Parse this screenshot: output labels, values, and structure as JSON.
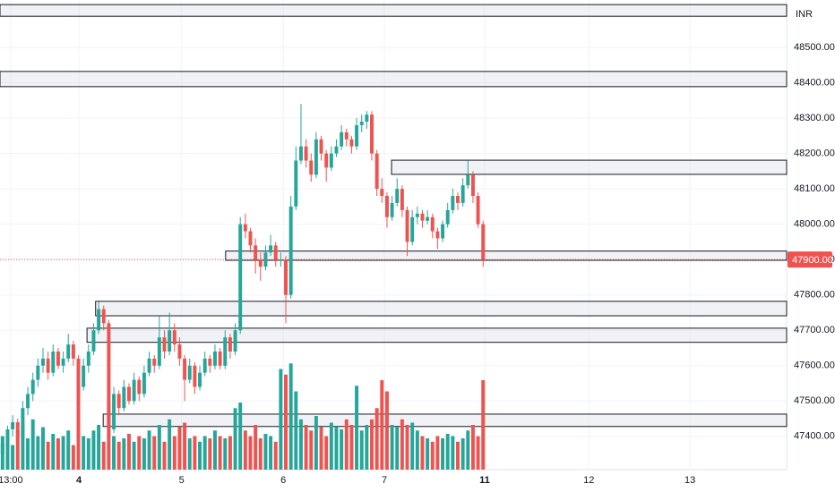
{
  "chart_data": {
    "type": "candlestick",
    "currency": "INR",
    "xlim": [
      -0.5,
      155
    ],
    "ylim": [
      47306,
      48634
    ],
    "xticks": [
      {
        "value": 1.6,
        "label": "13:00"
      },
      {
        "value": 15.1,
        "label": "4",
        "bold": true
      },
      {
        "value": 35.4,
        "label": "5"
      },
      {
        "value": 55.5,
        "label": "6"
      },
      {
        "value": 75.5,
        "label": "7"
      },
      {
        "value": 95.3,
        "label": "11",
        "bold": true
      },
      {
        "value": 115.9,
        "label": "12"
      },
      {
        "value": 135.9,
        "label": "13"
      }
    ],
    "yticks": [
      {
        "value": 47400,
        "label": "47400.00"
      },
      {
        "value": 47500,
        "label": "47500.00"
      },
      {
        "value": 47600,
        "label": "47600.00"
      },
      {
        "value": 47700,
        "label": "47700.00"
      },
      {
        "value": 47800,
        "label": "47800.00"
      },
      {
        "value": 47900,
        "label": "47900.00"
      },
      {
        "value": 48000,
        "label": "48000.00"
      },
      {
        "value": 48100,
        "label": "48100.00"
      },
      {
        "value": 48200,
        "label": "48200.00"
      },
      {
        "value": 48300,
        "label": "48300.00"
      },
      {
        "value": 48400,
        "label": "48400.00"
      },
      {
        "value": 48500,
        "label": "48500.00"
      }
    ],
    "grid": true,
    "up_color": "#26a69a",
    "down_color": "#ef5350",
    "last_price": {
      "value": 47900,
      "label": "47900.00"
    },
    "zones": [
      {
        "start": -0.5,
        "top": 48621,
        "bottom": 48588
      },
      {
        "start": -0.5,
        "top": 48432,
        "bottom": 48389
      },
      {
        "start": 76.9,
        "top": 48181,
        "bottom": 48141
      },
      {
        "start": 44.1,
        "top": 47924,
        "bottom": 47898
      },
      {
        "start": 18.4,
        "top": 47782,
        "bottom": 47741
      },
      {
        "start": 16.7,
        "top": 47706,
        "bottom": 47666
      },
      {
        "start": 19.9,
        "top": 47463,
        "bottom": 47428
      }
    ],
    "x": [
      0,
      1,
      2,
      3,
      4,
      5,
      6,
      7,
      8,
      9,
      10,
      11,
      12,
      13,
      14,
      15,
      16,
      17,
      18,
      19,
      20,
      21,
      22,
      23,
      24,
      25,
      26,
      27,
      28,
      29,
      30,
      31,
      32,
      33,
      34,
      35,
      36,
      37,
      38,
      39,
      40,
      41,
      42,
      43,
      44,
      45,
      46,
      47,
      48,
      49,
      50,
      51,
      52,
      53,
      54,
      55,
      56,
      57,
      58,
      59,
      60,
      61,
      62,
      63,
      64,
      65,
      66,
      67,
      68,
      69,
      70,
      71,
      72,
      73,
      74,
      75,
      76,
      77,
      78,
      79,
      80,
      81,
      82,
      83,
      84,
      85,
      86,
      87,
      88,
      89,
      90,
      91,
      92,
      93,
      94,
      95
    ],
    "ohlc": [
      [
        47350,
        47400,
        47330,
        47380
      ],
      [
        47380,
        47430,
        47360,
        47420
      ],
      [
        47420,
        47460,
        47400,
        47440
      ],
      [
        47440,
        47450,
        47380,
        47400
      ],
      [
        47400,
        47500,
        47390,
        47480
      ],
      [
        47480,
        47540,
        47460,
        47520
      ],
      [
        47520,
        47580,
        47500,
        47560
      ],
      [
        47560,
        47620,
        47540,
        47600
      ],
      [
        47600,
        47650,
        47580,
        47620
      ],
      [
        47620,
        47640,
        47560,
        47580
      ],
      [
        47580,
        47660,
        47570,
        47640
      ],
      [
        47640,
        47650,
        47590,
        47600
      ],
      [
        47600,
        47640,
        47580,
        47620
      ],
      [
        47620,
        47690,
        47610,
        47660
      ],
      [
        47660,
        47670,
        47600,
        47620
      ],
      [
        47620,
        47630,
        47480,
        47540
      ],
      [
        47540,
        47620,
        47530,
        47600
      ],
      [
        47600,
        47660,
        47580,
        47640
      ],
      [
        47640,
        47720,
        47630,
        47700
      ],
      [
        47700,
        47780,
        47690,
        47760
      ],
      [
        47760,
        47770,
        47700,
        47720
      ],
      [
        47720,
        47730,
        47400,
        47420
      ],
      [
        47420,
        47540,
        47410,
        47520
      ],
      [
        47520,
        47530,
        47460,
        47480
      ],
      [
        47480,
        47560,
        47470,
        47540
      ],
      [
        47540,
        47550,
        47490,
        47500
      ],
      [
        47500,
        47580,
        47490,
        47560
      ],
      [
        47560,
        47570,
        47500,
        47520
      ],
      [
        47520,
        47600,
        47510,
        47580
      ],
      [
        47580,
        47640,
        47570,
        47620
      ],
      [
        47620,
        47630,
        47580,
        47600
      ],
      [
        47600,
        47740,
        47590,
        47680
      ],
      [
        47680,
        47700,
        47620,
        47640
      ],
      [
        47640,
        47750,
        47630,
        47700
      ],
      [
        47700,
        47720,
        47640,
        47660
      ],
      [
        47660,
        47680,
        47600,
        47620
      ],
      [
        47620,
        47630,
        47500,
        47560
      ],
      [
        47560,
        47620,
        47550,
        47600
      ],
      [
        47600,
        47610,
        47520,
        47540
      ],
      [
        47540,
        47600,
        47530,
        47580
      ],
      [
        47580,
        47640,
        47570,
        47620
      ],
      [
        47620,
        47630,
        47580,
        47600
      ],
      [
        47600,
        47660,
        47590,
        47640
      ],
      [
        47640,
        47650,
        47590,
        47600
      ],
      [
        47600,
        47700,
        47590,
        47680
      ],
      [
        47680,
        47690,
        47620,
        47640
      ],
      [
        47640,
        47720,
        47630,
        47700
      ],
      [
        47700,
        48020,
        47690,
        48000
      ],
      [
        48000,
        48030,
        47960,
        47980
      ],
      [
        47980,
        47990,
        47920,
        47940
      ],
      [
        47940,
        47960,
        47860,
        47900
      ],
      [
        47900,
        47920,
        47840,
        47880
      ],
      [
        47880,
        47940,
        47870,
        47920
      ],
      [
        47920,
        47970,
        47910,
        47940
      ],
      [
        47940,
        47950,
        47880,
        47900
      ],
      [
        47900,
        47920,
        47880,
        47900
      ],
      [
        47900,
        47910,
        47720,
        47800
      ],
      [
        47800,
        48080,
        47790,
        48050
      ],
      [
        48050,
        48220,
        48040,
        48180
      ],
      [
        48180,
        48340,
        48170,
        48220
      ],
      [
        48220,
        48240,
        48160,
        48180
      ],
      [
        48180,
        48200,
        48120,
        48140
      ],
      [
        48140,
        48260,
        48130,
        48240
      ],
      [
        48240,
        48250,
        48180,
        48200
      ],
      [
        48200,
        48210,
        48120,
        48160
      ],
      [
        48160,
        48220,
        48150,
        48200
      ],
      [
        48200,
        48240,
        48190,
        48220
      ],
      [
        48220,
        48280,
        48210,
        48260
      ],
      [
        48260,
        48270,
        48220,
        48240
      ],
      [
        48240,
        48250,
        48200,
        48220
      ],
      [
        48220,
        48300,
        48210,
        48280
      ],
      [
        48280,
        48310,
        48260,
        48290
      ],
      [
        48290,
        48320,
        48270,
        48310
      ],
      [
        48310,
        48320,
        48180,
        48200
      ],
      [
        48200,
        48210,
        48080,
        48100
      ],
      [
        48100,
        48130,
        48060,
        48080
      ],
      [
        48080,
        48090,
        47990,
        48020
      ],
      [
        48020,
        48080,
        48010,
        48060
      ],
      [
        48060,
        48130,
        48050,
        48100
      ],
      [
        48100,
        48110,
        48020,
        48040
      ],
      [
        48040,
        48050,
        47910,
        47950
      ],
      [
        47950,
        48040,
        47940,
        48020
      ],
      [
        48020,
        48050,
        48000,
        48030
      ],
      [
        48030,
        48040,
        47990,
        48010
      ],
      [
        48010,
        48040,
        48000,
        48020
      ],
      [
        48020,
        48030,
        47960,
        47980
      ],
      [
        47980,
        47990,
        47930,
        47960
      ],
      [
        47960,
        48010,
        47950,
        48000
      ],
      [
        48000,
        48060,
        47990,
        48040
      ],
      [
        48040,
        48100,
        48030,
        48080
      ],
      [
        48080,
        48090,
        48040,
        48060
      ],
      [
        48060,
        48130,
        48050,
        48110
      ],
      [
        48110,
        48180,
        48100,
        48140
      ],
      [
        48140,
        48150,
        48060,
        48080
      ],
      [
        48080,
        48090,
        47990,
        48000
      ],
      [
        48000,
        48010,
        47880,
        47900
      ]
    ],
    "volume_lim": [
      0,
      420
    ],
    "volume": [
      30,
      25,
      22,
      35,
      40,
      28,
      45,
      30,
      38,
      25,
      32,
      28,
      30,
      35,
      22,
      84,
      30,
      28,
      35,
      40,
      25,
      60,
      30,
      25,
      28,
      32,
      25,
      30,
      28,
      35,
      30,
      40,
      25,
      45,
      30,
      38,
      42,
      28,
      30,
      25,
      30,
      28,
      35,
      30,
      28,
      30,
      55,
      60,
      35,
      30,
      40,
      28,
      32,
      30,
      25,
      90,
      85,
      95,
      70,
      45,
      40,
      35,
      48,
      38,
      30,
      42,
      38,
      36,
      45,
      40,
      75,
      35,
      40,
      45,
      55,
      80,
      70,
      40,
      38,
      45,
      40,
      42,
      35,
      30,
      28,
      25,
      30,
      28,
      32,
      30,
      25,
      28,
      35,
      40,
      30,
      80
    ]
  }
}
